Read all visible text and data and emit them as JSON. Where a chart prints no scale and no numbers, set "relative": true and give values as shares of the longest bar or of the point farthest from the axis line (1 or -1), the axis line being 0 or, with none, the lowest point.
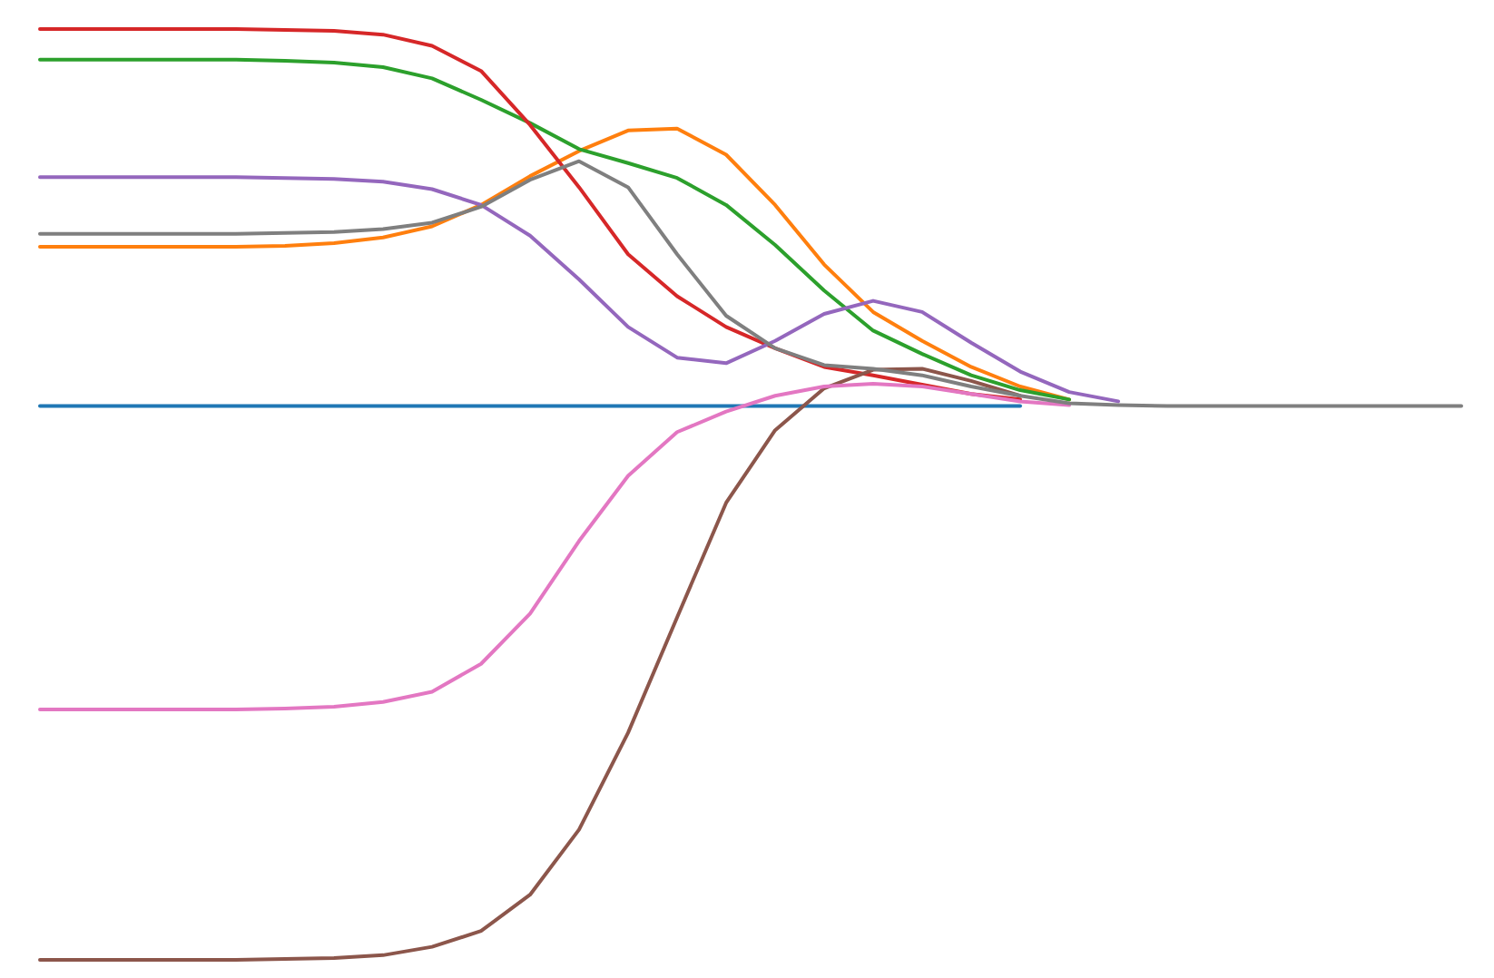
{
  "chart_data": {
    "type": "line",
    "relative": true,
    "categories": [
      null,
      null,
      null,
      null,
      null,
      null,
      null,
      null,
      null,
      null,
      null,
      null,
      null,
      null,
      null,
      null,
      null,
      null,
      null,
      null,
      null,
      null,
      null,
      null,
      null,
      null,
      null,
      null,
      null,
      null
    ],
    "series": [
      {
        "color": "#1f77b4",
        "values": [
          0.595,
          0.595,
          0.595,
          0.595,
          0.595,
          0.595,
          0.595,
          0.595,
          0.595,
          0.595,
          0.595,
          0.595,
          0.595,
          0.595,
          0.595,
          0.595,
          0.595,
          0.595,
          0.595,
          0.595,
          0.595,
          null,
          null,
          null,
          null,
          null,
          null,
          null,
          null,
          null
        ]
      },
      {
        "color": "#ff7f0e",
        "values": [
          0.766,
          0.766,
          0.766,
          0.766,
          0.766,
          0.767,
          0.77,
          0.776,
          0.788,
          0.811,
          0.842,
          0.869,
          0.891,
          0.893,
          0.865,
          0.811,
          0.747,
          0.696,
          0.665,
          0.637,
          0.616,
          0.602,
          null,
          null,
          null,
          null,
          null,
          null,
          null,
          null
        ]
      },
      {
        "color": "#2ca02c",
        "values": [
          0.967,
          0.967,
          0.967,
          0.967,
          0.967,
          0.966,
          0.964,
          0.959,
          0.947,
          0.924,
          0.899,
          0.871,
          0.856,
          0.84,
          0.811,
          0.768,
          0.719,
          0.676,
          0.651,
          0.628,
          0.612,
          0.602,
          null,
          null,
          null,
          null,
          null,
          null,
          null,
          null
        ]
      },
      {
        "color": "#d62728",
        "values": [
          1,
          1,
          1,
          1,
          1,
          0.999,
          0.998,
          0.994,
          0.982,
          0.955,
          0.897,
          0.83,
          0.758,
          0.713,
          0.68,
          0.657,
          0.637,
          0.628,
          0.618,
          0.608,
          0.602,
          null,
          null,
          null,
          null,
          null,
          null,
          null,
          null,
          null
        ]
      },
      {
        "color": "#9467bd",
        "values": [
          0.841,
          0.841,
          0.841,
          0.841,
          0.841,
          0.84,
          0.839,
          0.836,
          0.828,
          0.811,
          0.778,
          0.731,
          0.68,
          0.647,
          0.641,
          0.665,
          0.694,
          0.708,
          0.696,
          0.663,
          0.632,
          0.61,
          0.6,
          null,
          null,
          null,
          null,
          null,
          null,
          null
        ]
      },
      {
        "color": "#8c564b",
        "values": [
          0,
          0,
          0,
          0,
          0,
          0.001,
          0.002,
          0.005,
          0.014,
          0.031,
          0.07,
          0.14,
          0.244,
          0.368,
          0.491,
          0.569,
          0.614,
          0.634,
          0.635,
          0.622,
          0.606,
          null,
          null,
          null,
          null,
          null,
          null,
          null,
          null,
          null
        ]
      },
      {
        "color": "#e377c2",
        "values": [
          0.269,
          0.269,
          0.269,
          0.269,
          0.269,
          0.27,
          0.272,
          0.277,
          0.288,
          0.318,
          0.372,
          0.45,
          0.52,
          0.567,
          0.589,
          0.606,
          0.616,
          0.619,
          0.616,
          0.608,
          0.6,
          0.596,
          null,
          null,
          null,
          null,
          null,
          null,
          null,
          null
        ]
      },
      {
        "color": "#7f7f7f",
        "values": [
          0.78,
          0.78,
          0.78,
          0.78,
          0.78,
          0.781,
          0.782,
          0.785,
          0.792,
          0.809,
          0.838,
          0.858,
          0.83,
          0.758,
          0.692,
          0.657,
          0.639,
          0.635,
          0.628,
          0.616,
          0.606,
          0.598,
          0.596,
          0.595,
          0.595,
          0.595,
          0.595,
          0.595,
          0.595,
          0.595
        ]
      }
    ]
  }
}
